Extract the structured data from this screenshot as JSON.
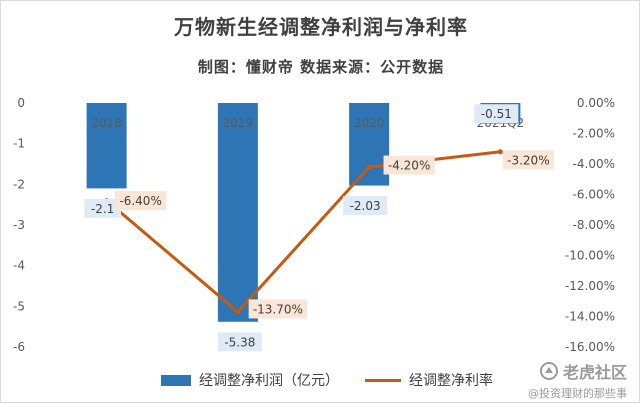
{
  "chart_data": {
    "type": "bar+line",
    "title": "万物新生经调整净利润与净利率",
    "subtitle": "制图：懂财帝   数据来源：公开数据",
    "categories": [
      "2018",
      "2019",
      "2020",
      "2021Q2"
    ],
    "series": [
      {
        "name": "经调整净利润（亿元）",
        "type": "bar",
        "axis": "left",
        "color": "#2e75b6",
        "values": [
          -2.1,
          -5.38,
          -2.03,
          -0.51
        ],
        "labels": [
          "-2.1",
          "-5.38",
          "-2.03",
          "-0.51"
        ]
      },
      {
        "name": "经调整净利率",
        "type": "line",
        "axis": "right",
        "color": "#c55a11",
        "values": [
          -6.4,
          -13.7,
          -4.2,
          -3.2
        ],
        "labels": [
          "-6.40%",
          "-13.70%",
          "-4.20%",
          "-3.20%"
        ]
      }
    ],
    "y_left": {
      "range": [
        -6,
        0
      ],
      "ticks": [
        "0",
        "-1",
        "-2",
        "-3",
        "-4",
        "-5",
        "-6"
      ]
    },
    "y_right": {
      "range": [
        -16,
        0
      ],
      "ticks": [
        "0.00%",
        "-2.00%",
        "-4.00%",
        "-6.00%",
        "-8.00%",
        "-10.00%",
        "-12.00%",
        "-14.00%",
        "-16.00%"
      ]
    },
    "grid": false,
    "legend_position": "bottom"
  },
  "watermark": {
    "brand": "老虎社区",
    "handle": "@投资理财的那些事"
  }
}
